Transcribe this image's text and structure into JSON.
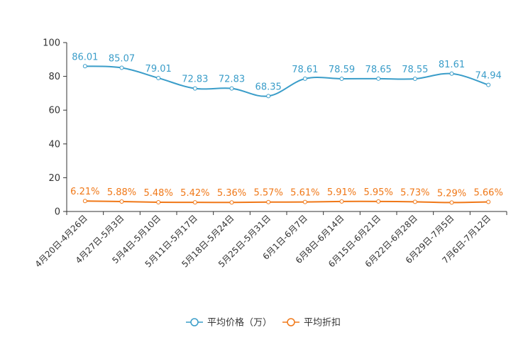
{
  "chart_data": {
    "type": "line",
    "title": "",
    "xlabel": "",
    "ylabel": "",
    "ylim": [
      0,
      100
    ],
    "yticks": [
      0,
      20,
      40,
      60,
      80,
      100
    ],
    "categories": [
      "4月20日-4月26日",
      "4月27日-5月3日",
      "5月4日-5月10日",
      "5月11日-5月17日",
      "5月18日-5月24日",
      "5月25日-5月31日",
      "6月1日-6月7日",
      "6月8日-6月14日",
      "6月15日-6月21日",
      "6月22日-6月28日",
      "6月29日-7月5日",
      "7月6日-7月12日"
    ],
    "series": [
      {
        "name": "平均价格（万）",
        "color": "#3a9dc9",
        "values": [
          86.01,
          85.07,
          79.01,
          72.83,
          72.83,
          68.35,
          78.61,
          78.59,
          78.65,
          78.55,
          81.61,
          74.94
        ],
        "labels": [
          "86.01",
          "85.07",
          "79.01",
          "72.83",
          "72.83",
          "68.35",
          "78.61",
          "78.59",
          "78.65",
          "78.55",
          "81.61",
          "74.94"
        ]
      },
      {
        "name": "平均折扣",
        "color": "#f07818",
        "values": [
          6.21,
          5.88,
          5.48,
          5.42,
          5.36,
          5.57,
          5.61,
          5.91,
          5.95,
          5.73,
          5.29,
          5.66
        ],
        "labels": [
          "6.21%",
          "5.88%",
          "5.48%",
          "5.42%",
          "5.36%",
          "5.57%",
          "5.61%",
          "5.91%",
          "5.95%",
          "5.73%",
          "5.29%",
          "5.66%"
        ]
      }
    ],
    "legend_position": "bottom-center"
  }
}
